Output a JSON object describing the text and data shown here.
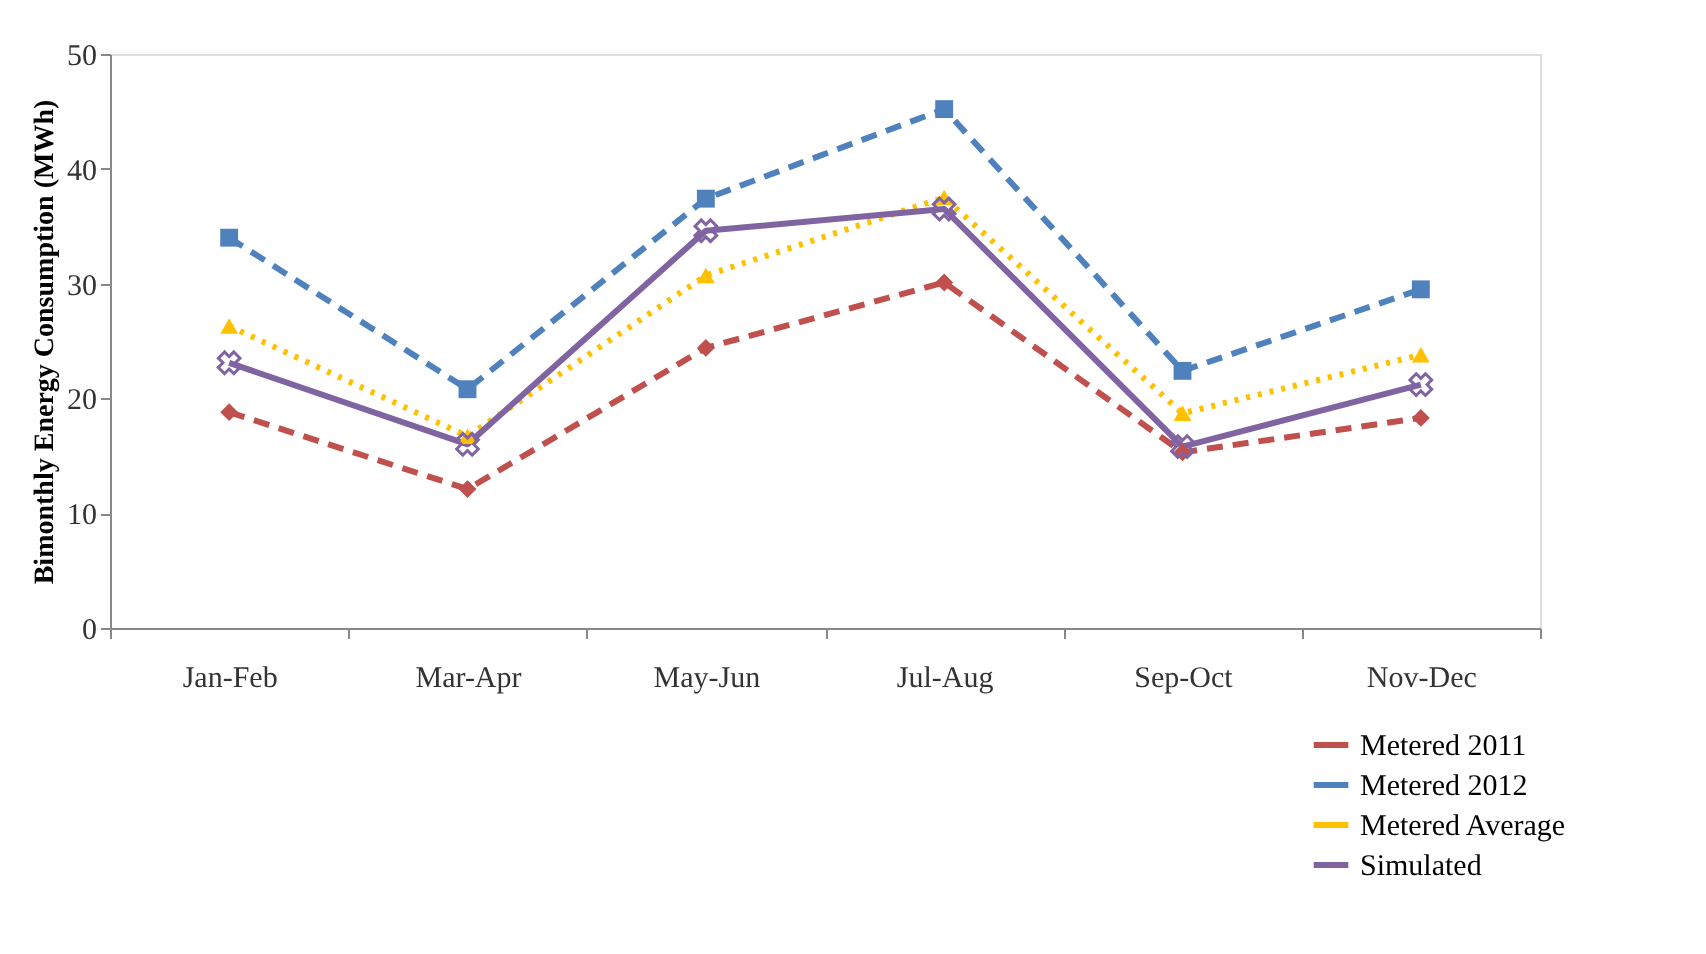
{
  "chart_data": {
    "type": "line",
    "ylabel": "Bimonthly Energy Consumption (MWh)",
    "categories": [
      "Jan-Feb",
      "Mar-Apr",
      "May-Jun",
      "Jul-Aug",
      "Sep-Oct",
      "Nov-Dec"
    ],
    "ylim": [
      0,
      50
    ],
    "yticks": [
      0,
      10,
      20,
      30,
      40,
      50
    ],
    "grid": false,
    "legend": "bottom right",
    "series": [
      {
        "name": "Metered 2011",
        "color": "#c0504d",
        "marker": "diamond",
        "line_style": "dashed",
        "values": [
          18.8,
          12.1,
          24.4,
          30.1,
          15.3,
          18.3
        ]
      },
      {
        "name": "Metered 2012",
        "color": "#4f81bd",
        "marker": "square",
        "line_style": "dashed",
        "values": [
          34.0,
          20.8,
          37.4,
          45.2,
          22.4,
          29.5
        ]
      },
      {
        "name": "Metered  Average",
        "color": "#ffc000",
        "marker": "triangle",
        "line_style": "dotted",
        "values": [
          26.3,
          16.7,
          30.7,
          37.5,
          18.7,
          23.8
        ]
      },
      {
        "name": "Simulated",
        "color": "#8064a2",
        "marker": "cross",
        "line_style": "solid",
        "values": [
          23.1,
          16.0,
          34.6,
          36.5,
          15.8,
          21.2
        ]
      }
    ]
  }
}
